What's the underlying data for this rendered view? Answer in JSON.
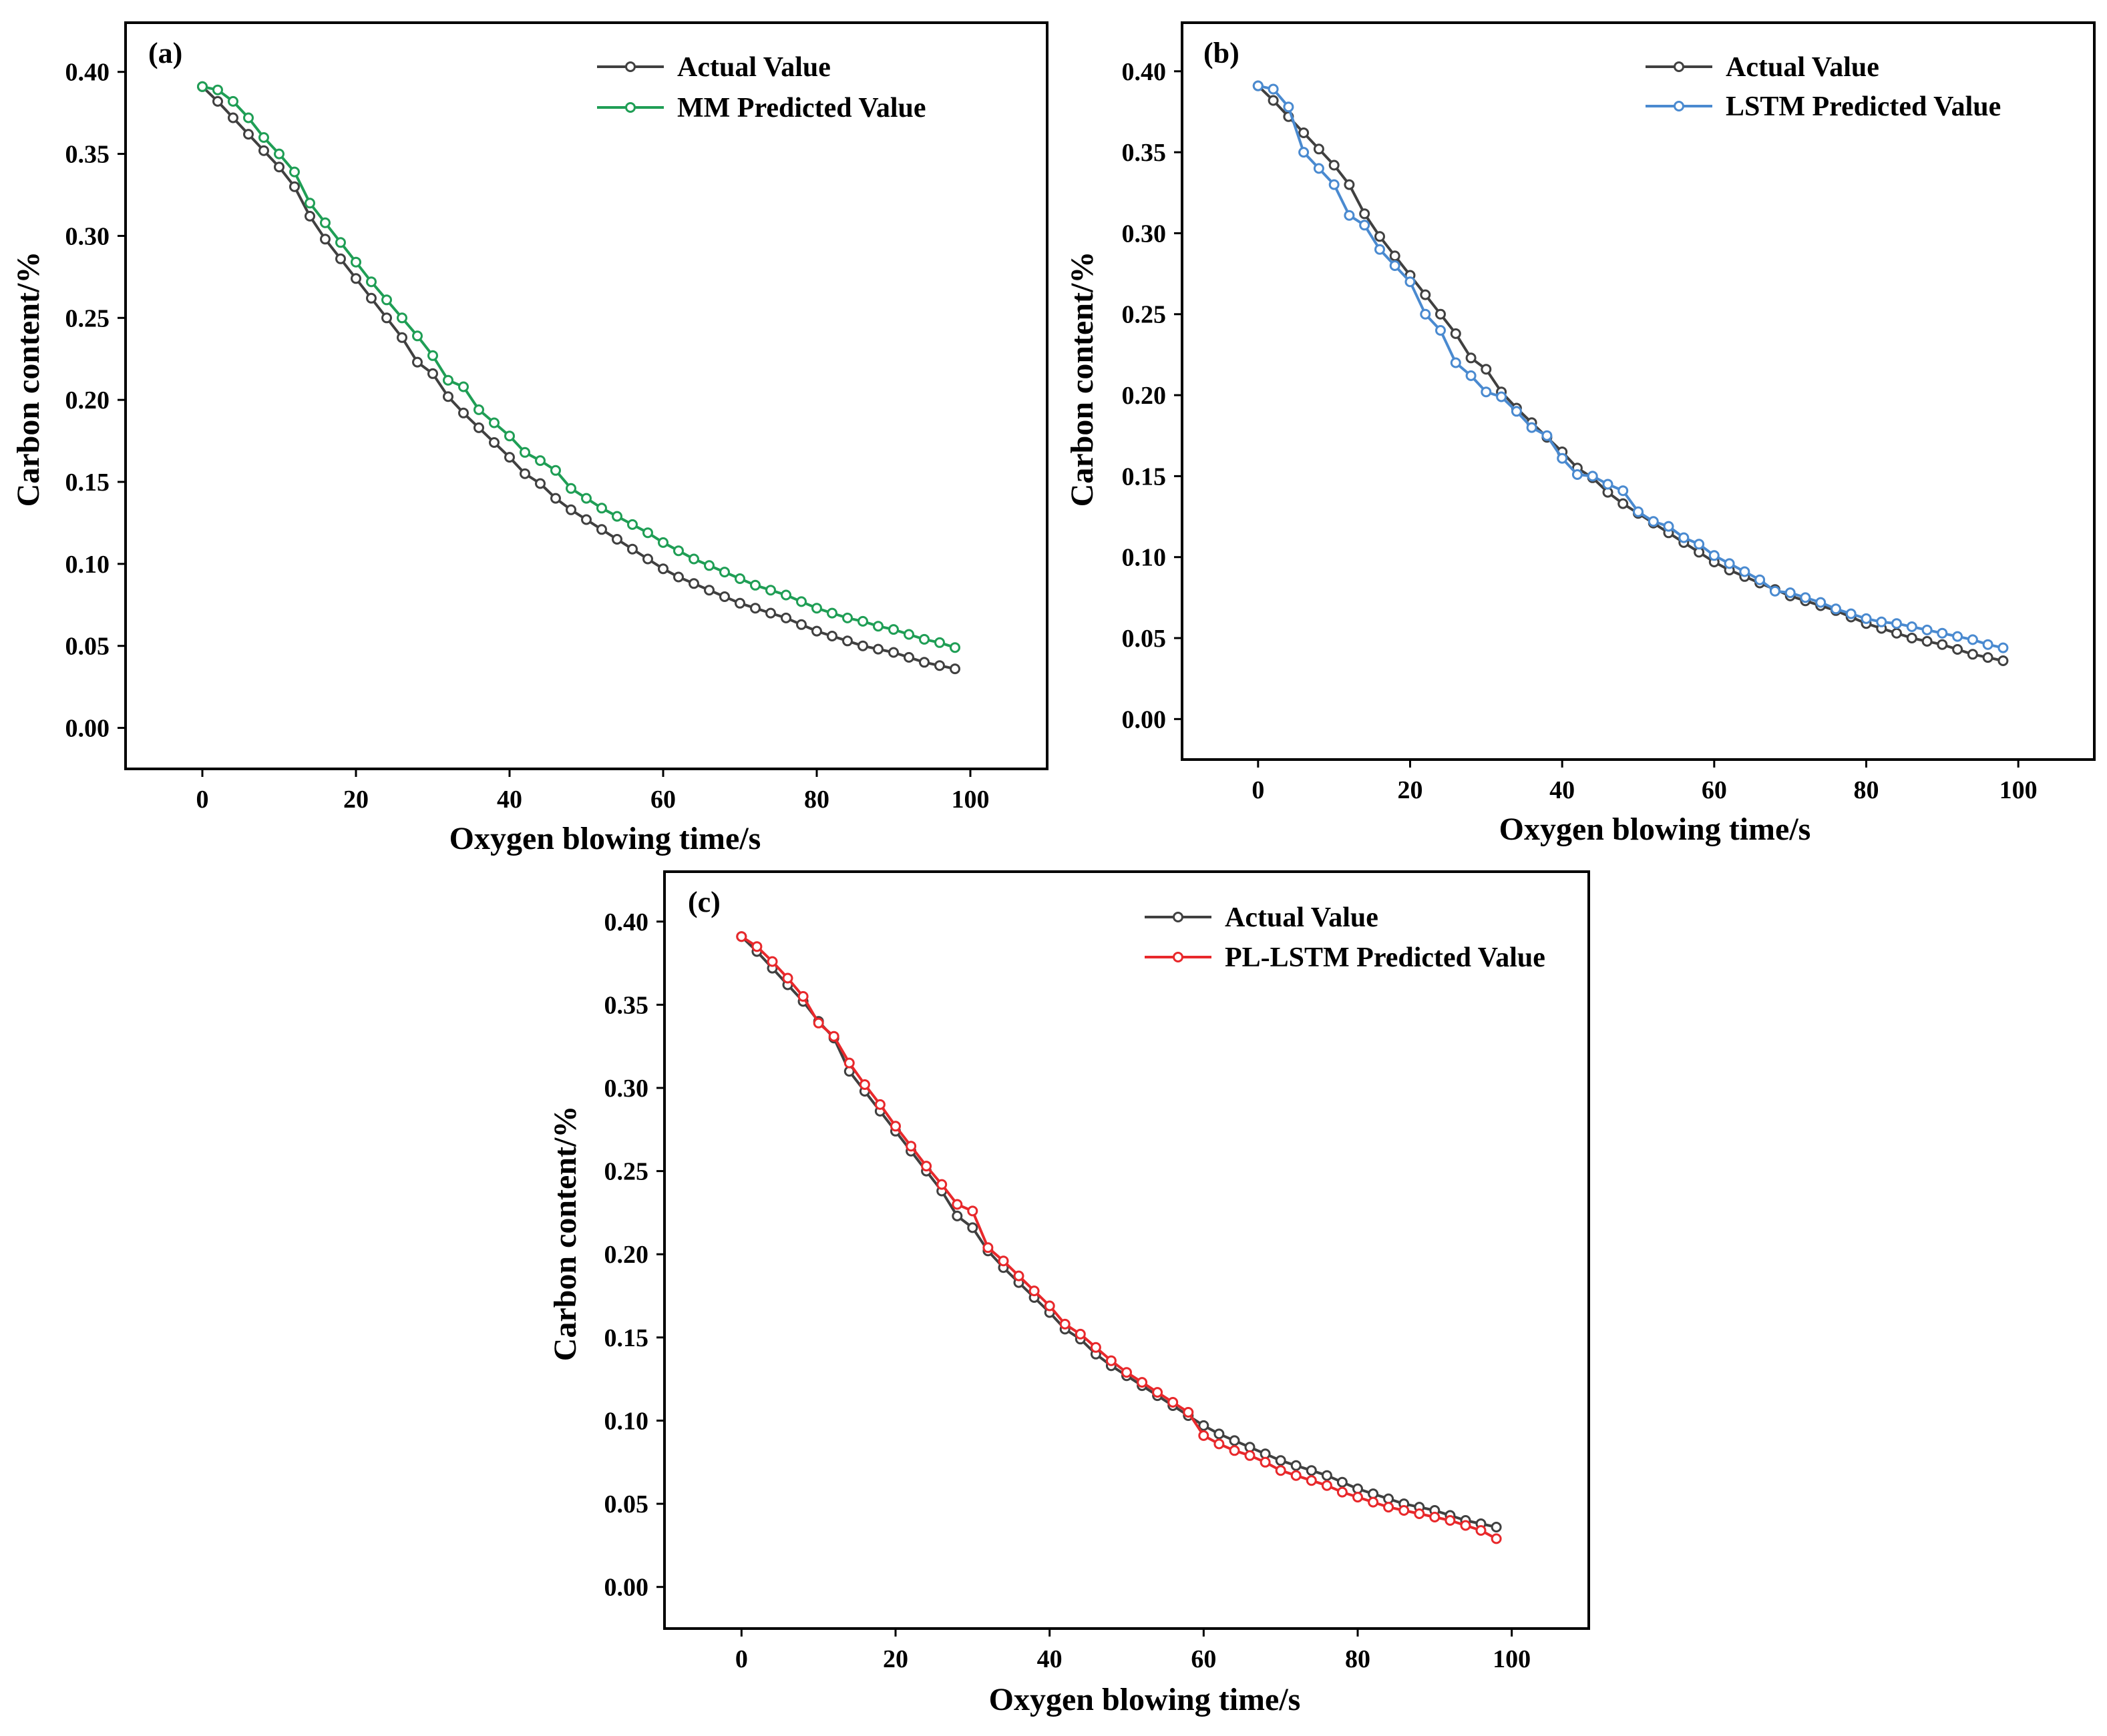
{
  "chart_data": [
    {
      "type": "line",
      "panel_label": "(a)",
      "xlabel": "Oxygen blowing time/s",
      "ylabel": "Carbon content/%",
      "xlim": [
        -10,
        110
      ],
      "ylim": [
        -0.025,
        0.43
      ],
      "xticks": [
        0,
        20,
        40,
        60,
        80,
        100
      ],
      "yticks": [
        0.0,
        0.05,
        0.1,
        0.15,
        0.2,
        0.25,
        0.3,
        0.35,
        0.4
      ],
      "x_tick_labels": [
        "0",
        "20",
        "40",
        "60",
        "80",
        "100"
      ],
      "y_tick_labels": [
        "0.00",
        "0.05",
        "0.10",
        "0.15",
        "0.20",
        "0.25",
        "0.30",
        "0.35",
        "0.40"
      ],
      "legend_position": "top-right",
      "x": [
        0,
        2,
        4,
        6,
        8,
        10,
        12,
        14,
        16,
        18,
        20,
        22,
        24,
        26,
        28,
        30,
        32,
        34,
        36,
        38,
        40,
        42,
        44,
        46,
        48,
        50,
        52,
        54,
        56,
        58,
        60,
        62,
        64,
        66,
        68,
        70,
        72,
        74,
        76,
        78,
        80,
        82,
        84,
        86,
        88,
        90,
        92,
        94,
        96,
        98
      ],
      "series": [
        {
          "name": "Actual Value",
          "color": "#404040",
          "values": [
            0.391,
            0.382,
            0.372,
            0.362,
            0.352,
            0.342,
            0.33,
            0.312,
            0.298,
            0.286,
            0.274,
            0.262,
            0.25,
            0.238,
            0.223,
            0.216,
            0.202,
            0.192,
            0.183,
            0.174,
            0.165,
            0.155,
            0.149,
            0.14,
            0.133,
            0.127,
            0.121,
            0.115,
            0.109,
            0.103,
            0.097,
            0.092,
            0.088,
            0.084,
            0.08,
            0.076,
            0.073,
            0.07,
            0.067,
            0.063,
            0.059,
            0.056,
            0.053,
            0.05,
            0.048,
            0.046,
            0.043,
            0.04,
            0.038,
            0.036
          ]
        },
        {
          "name": "MM Predicted Value",
          "color": "#1f9e55",
          "values": [
            0.391,
            0.389,
            0.382,
            0.372,
            0.36,
            0.35,
            0.339,
            0.32,
            0.308,
            0.296,
            0.284,
            0.272,
            0.261,
            0.25,
            0.239,
            0.227,
            0.212,
            0.208,
            0.194,
            0.186,
            0.178,
            0.168,
            0.163,
            0.157,
            0.146,
            0.14,
            0.134,
            0.129,
            0.124,
            0.119,
            0.113,
            0.108,
            0.103,
            0.099,
            0.095,
            0.091,
            0.087,
            0.084,
            0.081,
            0.077,
            0.073,
            0.07,
            0.067,
            0.065,
            0.062,
            0.06,
            0.057,
            0.054,
            0.052,
            0.049
          ]
        }
      ]
    },
    {
      "type": "line",
      "panel_label": "(b)",
      "xlabel": "Oxygen blowing time/s",
      "ylabel": "Carbon content/%",
      "xlim": [
        -10,
        110
      ],
      "ylim": [
        -0.025,
        0.43
      ],
      "xticks": [
        0,
        20,
        40,
        60,
        80,
        100
      ],
      "yticks": [
        0.0,
        0.05,
        0.1,
        0.15,
        0.2,
        0.25,
        0.3,
        0.35,
        0.4
      ],
      "x_tick_labels": [
        "0",
        "20",
        "40",
        "60",
        "80",
        "100"
      ],
      "y_tick_labels": [
        "0.00",
        "0.05",
        "0.10",
        "0.15",
        "0.20",
        "0.25",
        "0.30",
        "0.35",
        "0.40"
      ],
      "legend_position": "top-right",
      "x": [
        0,
        2,
        4,
        6,
        8,
        10,
        12,
        14,
        16,
        18,
        20,
        22,
        24,
        26,
        28,
        30,
        32,
        34,
        36,
        38,
        40,
        42,
        44,
        46,
        48,
        50,
        52,
        54,
        56,
        58,
        60,
        62,
        64,
        66,
        68,
        70,
        72,
        74,
        76,
        78,
        80,
        82,
        84,
        86,
        88,
        90,
        92,
        94,
        96,
        98
      ],
      "series": [
        {
          "name": "Actual Value",
          "color": "#404040",
          "values": [
            0.391,
            0.382,
            0.372,
            0.362,
            0.352,
            0.342,
            0.33,
            0.312,
            0.298,
            0.286,
            0.274,
            0.262,
            0.25,
            0.238,
            0.223,
            0.216,
            0.202,
            0.192,
            0.183,
            0.174,
            0.165,
            0.155,
            0.149,
            0.14,
            0.133,
            0.127,
            0.121,
            0.115,
            0.109,
            0.103,
            0.097,
            0.092,
            0.088,
            0.084,
            0.08,
            0.076,
            0.073,
            0.07,
            0.067,
            0.063,
            0.059,
            0.056,
            0.053,
            0.05,
            0.048,
            0.046,
            0.043,
            0.04,
            0.038,
            0.036
          ]
        },
        {
          "name": "LSTM Predicted Value",
          "color": "#4a8ad0",
          "values": [
            0.391,
            0.389,
            0.378,
            0.35,
            0.34,
            0.33,
            0.311,
            0.305,
            0.29,
            0.28,
            0.27,
            0.25,
            0.24,
            0.22,
            0.212,
            0.202,
            0.199,
            0.19,
            0.18,
            0.175,
            0.161,
            0.151,
            0.15,
            0.145,
            0.141,
            0.128,
            0.122,
            0.119,
            0.112,
            0.108,
            0.101,
            0.096,
            0.091,
            0.086,
            0.079,
            0.078,
            0.075,
            0.072,
            0.068,
            0.065,
            0.062,
            0.06,
            0.059,
            0.057,
            0.055,
            0.053,
            0.051,
            0.049,
            0.046,
            0.044
          ]
        }
      ]
    },
    {
      "type": "line",
      "panel_label": "(c)",
      "xlabel": "Oxygen blowing time/s",
      "ylabel": "Carbon content/%",
      "xlim": [
        -10,
        110
      ],
      "ylim": [
        -0.025,
        0.43
      ],
      "xticks": [
        0,
        20,
        40,
        60,
        80,
        100
      ],
      "yticks": [
        0.0,
        0.05,
        0.1,
        0.15,
        0.2,
        0.25,
        0.3,
        0.35,
        0.4
      ],
      "x_tick_labels": [
        "0",
        "20",
        "40",
        "60",
        "80",
        "100"
      ],
      "y_tick_labels": [
        "0.00",
        "0.05",
        "0.10",
        "0.15",
        "0.20",
        "0.25",
        "0.30",
        "0.35",
        "0.40"
      ],
      "legend_position": "top-right",
      "x": [
        0,
        2,
        4,
        6,
        8,
        10,
        12,
        14,
        16,
        18,
        20,
        22,
        24,
        26,
        28,
        30,
        32,
        34,
        36,
        38,
        40,
        42,
        44,
        46,
        48,
        50,
        52,
        54,
        56,
        58,
        60,
        62,
        64,
        66,
        68,
        70,
        72,
        74,
        76,
        78,
        80,
        82,
        84,
        86,
        88,
        90,
        92,
        94,
        96,
        98
      ],
      "series": [
        {
          "name": "Actual Value",
          "color": "#404040",
          "values": [
            0.391,
            0.382,
            0.372,
            0.362,
            0.352,
            0.34,
            0.33,
            0.31,
            0.298,
            0.286,
            0.274,
            0.262,
            0.25,
            0.238,
            0.223,
            0.216,
            0.202,
            0.192,
            0.183,
            0.174,
            0.165,
            0.155,
            0.149,
            0.14,
            0.133,
            0.127,
            0.121,
            0.115,
            0.109,
            0.103,
            0.097,
            0.092,
            0.088,
            0.084,
            0.08,
            0.076,
            0.073,
            0.07,
            0.067,
            0.063,
            0.059,
            0.056,
            0.053,
            0.05,
            0.048,
            0.046,
            0.043,
            0.04,
            0.038,
            0.036
          ]
        },
        {
          "name": "PL-LSTM Predicted Value",
          "color": "#e8282b",
          "values": [
            0.391,
            0.385,
            0.376,
            0.366,
            0.355,
            0.339,
            0.331,
            0.315,
            0.302,
            0.29,
            0.277,
            0.265,
            0.253,
            0.242,
            0.23,
            0.226,
            0.204,
            0.196,
            0.187,
            0.178,
            0.169,
            0.158,
            0.152,
            0.144,
            0.136,
            0.129,
            0.123,
            0.117,
            0.111,
            0.105,
            0.091,
            0.086,
            0.082,
            0.079,
            0.075,
            0.07,
            0.067,
            0.064,
            0.061,
            0.057,
            0.054,
            0.051,
            0.048,
            0.046,
            0.044,
            0.042,
            0.04,
            0.037,
            0.034,
            0.029
          ]
        }
      ]
    }
  ]
}
